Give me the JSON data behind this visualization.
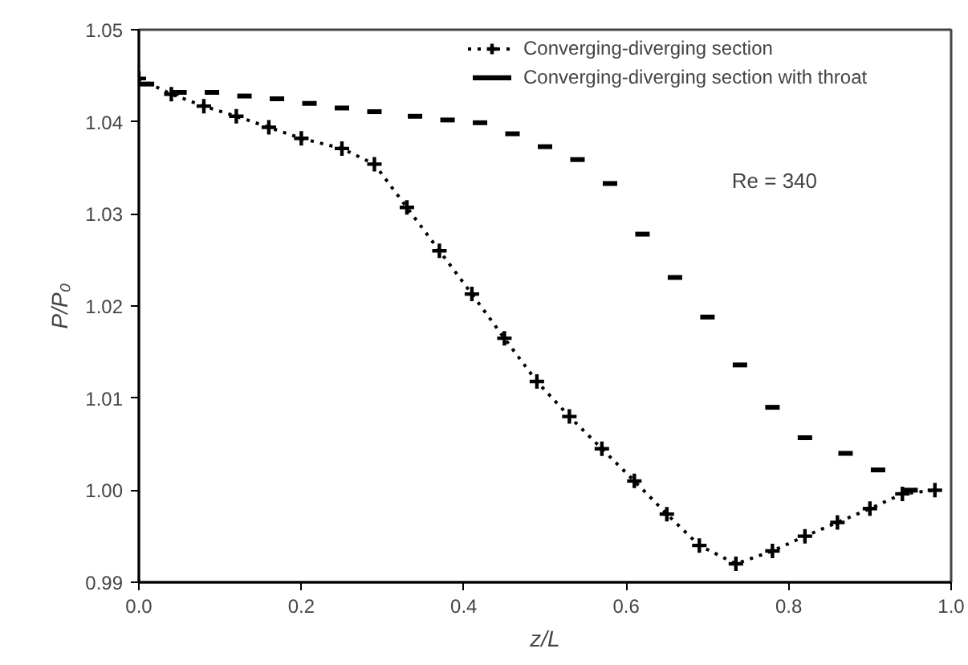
{
  "chart_data": {
    "type": "line",
    "xlabel": "z/L",
    "ylabel": "P/P₀",
    "xlim": [
      0.0,
      1.0
    ],
    "xticks": [
      {
        "value": 0,
        "label": "0.0"
      },
      0.2,
      0.4,
      0.6,
      0.8,
      {
        "value": 1,
        "label": "1.0"
      }
    ],
    "ylim": [
      0.99,
      1.05
    ],
    "yticks": [
      0.99,
      {
        "value": 1,
        "label": "1.00"
      },
      1.01,
      1.02,
      1.03,
      1.04,
      1.05
    ],
    "grid": false,
    "legend": "top right",
    "annotations": [
      "Re = 340"
    ],
    "series": [
      {
        "name": "Converging-diverging section",
        "color": "#000000",
        "marker": "cross",
        "line_style": "dotted",
        "x": [
          0.0,
          0.04,
          0.08,
          0.12,
          0.16,
          0.2,
          0.25,
          0.29,
          0.33,
          0.37,
          0.41,
          0.45,
          0.49,
          0.53,
          0.57,
          0.61,
          0.65,
          0.69,
          0.735,
          0.78,
          0.82,
          0.86,
          0.9,
          0.94,
          0.98
        ],
        "values": [
          1.0447,
          1.043,
          1.0417,
          1.0406,
          1.0394,
          1.0382,
          1.0371,
          1.0354,
          1.0307,
          1.026,
          1.0213,
          1.0165,
          1.0118,
          1.008,
          1.0045,
          1.001,
          0.9974,
          0.994,
          0.992,
          0.9934,
          0.995,
          0.9965,
          0.998,
          0.9996,
          1.0
        ]
      },
      {
        "name": "Converging-diverging section with throat",
        "color": "#000000",
        "type": "scatter",
        "x": [
          0.01,
          0.05,
          0.09,
          0.13,
          0.17,
          0.21,
          0.25,
          0.29,
          0.34,
          0.38,
          0.42,
          0.46,
          0.5,
          0.54,
          0.58,
          0.62,
          0.66,
          0.7,
          0.74,
          0.78,
          0.82,
          0.87,
          0.91,
          0.95
        ],
        "values": [
          1.0441,
          1.0432,
          1.0432,
          1.0428,
          1.0425,
          1.042,
          1.0415,
          1.0411,
          1.0406,
          1.0402,
          1.0399,
          1.0387,
          1.0373,
          1.0359,
          1.0333,
          1.0278,
          1.0231,
          1.0188,
          1.0136,
          1.009,
          1.0057,
          1.004,
          1.0022,
          1.0
        ]
      }
    ]
  }
}
